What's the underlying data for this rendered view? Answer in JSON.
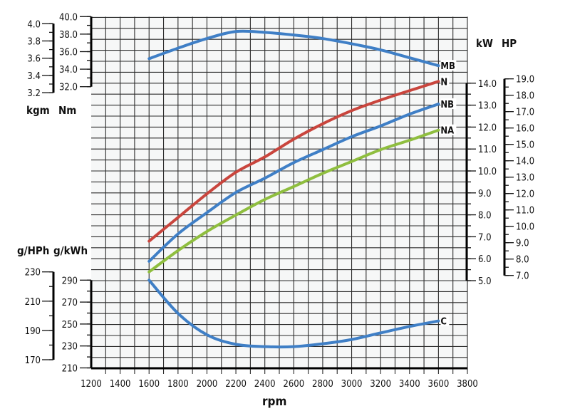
{
  "chart_data": {
    "type": "line",
    "grid": true,
    "x": [
      1600,
      1800,
      2000,
      2200,
      2400,
      2600,
      2800,
      3000,
      3200,
      3400,
      3600
    ],
    "xlabel": "rpm",
    "xlim": [
      1200,
      3800
    ],
    "xticks": [
      "1200",
      "1400",
      "1600",
      "1800",
      "2000",
      "2200",
      "2400",
      "2600",
      "2800",
      "3000",
      "3200",
      "3400",
      "3600",
      "3800"
    ],
    "axes": {
      "torque_kgm": {
        "label": "kgm",
        "range": [
          3.2,
          4.0
        ],
        "ticks": [
          "4.0",
          "3.8",
          "3.6",
          "3.4",
          "3.2"
        ],
        "side": "left"
      },
      "torque_nm": {
        "label": "Nm",
        "range": [
          32.0,
          40.0
        ],
        "ticks": [
          "40.0",
          "38.0",
          "36.0",
          "34.0",
          "32.0"
        ],
        "side": "left"
      },
      "consumption_ghph": {
        "label": "g/HPh",
        "range": [
          170,
          230
        ],
        "ticks": [
          "230",
          "210",
          "190",
          "170"
        ],
        "side": "left"
      },
      "consumption_gkwh": {
        "label": "g/kWh",
        "range": [
          210,
          290
        ],
        "ticks": [
          "290",
          "270",
          "250",
          "230",
          "210"
        ],
        "side": "left"
      },
      "power_kw": {
        "label": "kW",
        "range": [
          5.0,
          14.0
        ],
        "ticks": [
          "14.0",
          "13.0",
          "12.0",
          "11.0",
          "10.0",
          "9.0",
          "8.0",
          "7.0",
          "6.0",
          "5.0"
        ],
        "side": "right"
      },
      "power_hp": {
        "label": "HP",
        "range": [
          7.0,
          19.0
        ],
        "ticks": [
          "19.0",
          "18.0",
          "17.0",
          "16.0",
          "15.0",
          "14.0",
          "13.0",
          "12.0",
          "11.0",
          "10.0",
          "9.0",
          "8.0",
          "7.0"
        ],
        "side": "right"
      }
    },
    "series": [
      {
        "name": "MB",
        "axis": "torque_nm",
        "color": "#3f7fc6",
        "values": [
          35.2,
          36.4,
          37.5,
          38.3,
          38.2,
          37.9,
          37.5,
          36.9,
          36.2,
          35.3,
          34.4
        ]
      },
      {
        "name": "N",
        "axis": "power_kw",
        "color": "#c9453d",
        "values": [
          6.8,
          7.88,
          8.96,
          9.94,
          10.64,
          11.45,
          12.15,
          12.75,
          13.23,
          13.66,
          14.08
        ]
      },
      {
        "name": "NB",
        "axis": "power_kw",
        "color": "#3f7fc6",
        "values": [
          5.88,
          7.13,
          8.1,
          9.02,
          9.67,
          10.38,
          10.97,
          11.56,
          12.05,
          12.59,
          13.05
        ]
      },
      {
        "name": "NA",
        "axis": "power_kw",
        "color": "#8fbe3f",
        "values": [
          5.4,
          6.37,
          7.24,
          7.99,
          8.7,
          9.29,
          9.89,
          10.43,
          10.97,
          11.4,
          11.86
        ]
      },
      {
        "name": "C",
        "axis": "consumption_gkwh",
        "color": "#3f7fc6",
        "values": [
          290,
          259.7,
          240.2,
          231.5,
          229.4,
          229.4,
          232.0,
          235.9,
          241.9,
          247.8,
          252.8
        ]
      }
    ]
  }
}
